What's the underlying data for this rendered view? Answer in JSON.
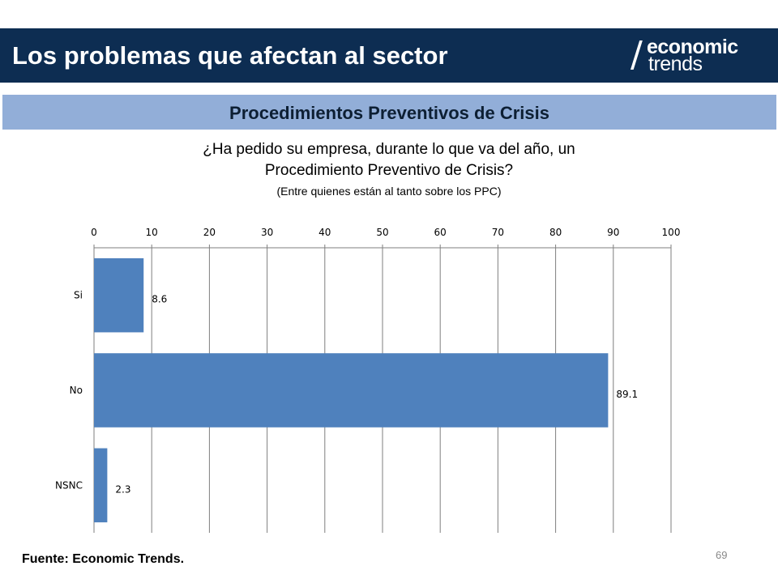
{
  "header": {
    "title": "Los problemas que afectan al sector",
    "logo_line1": "economic",
    "logo_line2": "trends"
  },
  "subtitle": "Procedimientos Preventivos de Crisis",
  "question": {
    "line1": "¿Ha pedido su empresa, durante lo que va del año, un",
    "line2": "Procedimiento Preventivo de Crisis?",
    "line3": "(Entre quienes están al tanto sobre los PPC)"
  },
  "chart_data": {
    "type": "bar",
    "orientation": "horizontal",
    "categories": [
      "Si",
      "No",
      "NSNC"
    ],
    "values": [
      8.6,
      89.1,
      2.3
    ],
    "value_labels": [
      "8.6",
      "89.1",
      "2.3"
    ],
    "xlim": [
      0,
      100
    ],
    "ticks": [
      "0",
      "10",
      "20",
      "30",
      "40",
      "50",
      "60",
      "70",
      "80",
      "90",
      "100"
    ],
    "tick_values": [
      0,
      10,
      20,
      30,
      40,
      50,
      60,
      70,
      80,
      90,
      100
    ],
    "axis_position": "top",
    "grid": true,
    "bar_color": "#4f81bd"
  },
  "footer": {
    "source": "Fuente: Economic Trends.",
    "page_number": "69"
  }
}
